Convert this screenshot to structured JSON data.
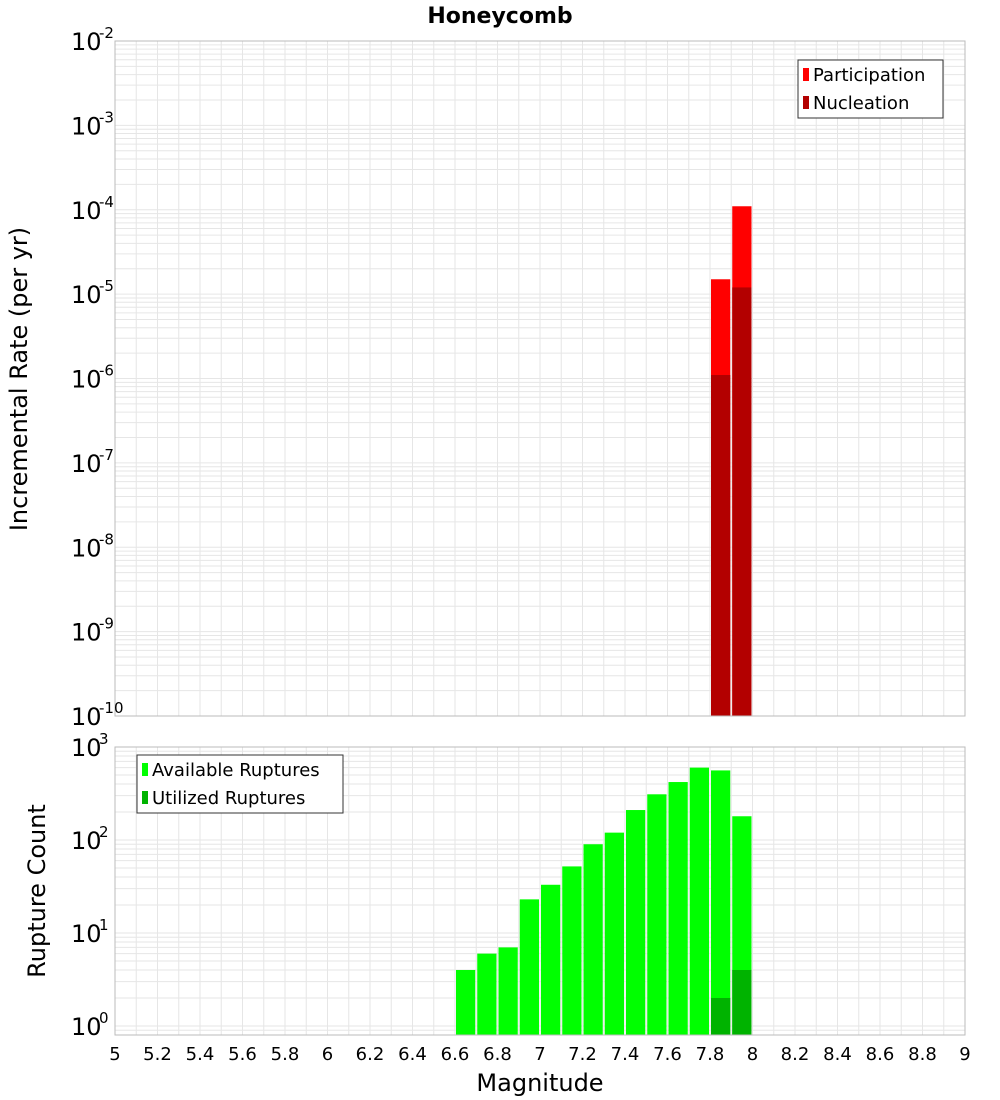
{
  "title": "Honeycomb",
  "colors": {
    "participation": "#ff0000",
    "nucleation": "#b30000",
    "available": "#00ff00",
    "utilized": "#00b300",
    "grid": "#e6e6e6",
    "frame": "#bbbbbb"
  },
  "chart_data": [
    {
      "type": "bar",
      "ylabel": "Incremental Rate (per yr)",
      "yscale": "log",
      "ylim": [
        1e-10,
        0.01
      ],
      "xlim": [
        5,
        9
      ],
      "y_ticks": [
        {
          "base": "10",
          "exp": "-10",
          "value": 1e-10
        },
        {
          "base": "10",
          "exp": "-9",
          "value": 1e-09
        },
        {
          "base": "10",
          "exp": "-8",
          "value": 1e-08
        },
        {
          "base": "10",
          "exp": "-7",
          "value": 1e-07
        },
        {
          "base": "10",
          "exp": "-6",
          "value": 1e-06
        },
        {
          "base": "10",
          "exp": "-5",
          "value": 1e-05
        },
        {
          "base": "10",
          "exp": "-4",
          "value": 0.0001
        },
        {
          "base": "10",
          "exp": "-3",
          "value": 0.001
        },
        {
          "base": "10",
          "exp": "-2",
          "value": 0.01
        }
      ],
      "legend": {
        "position": "top-right",
        "entries": [
          "Participation",
          "Nucleation"
        ]
      },
      "grid": true,
      "series": [
        {
          "name": "Participation",
          "x": [
            7.85,
            7.95
          ],
          "values": [
            1.5e-05,
            0.00011
          ]
        },
        {
          "name": "Nucleation",
          "x": [
            7.85,
            7.95
          ],
          "values": [
            1.1e-06,
            1.2e-05
          ]
        }
      ]
    },
    {
      "type": "bar",
      "ylabel": "Rupture Count",
      "xlabel": "Magnitude",
      "yscale": "log",
      "ylim": [
        0.8,
        1000
      ],
      "xlim": [
        5,
        9
      ],
      "y_ticks": [
        {
          "base": "10",
          "exp": "0",
          "value": 1
        },
        {
          "base": "10",
          "exp": "1",
          "value": 10
        },
        {
          "base": "10",
          "exp": "2",
          "value": 100
        },
        {
          "base": "10",
          "exp": "3",
          "value": 1000
        }
      ],
      "x_ticks": [
        "5",
        "5.2",
        "5.4",
        "5.6",
        "5.8",
        "6",
        "6.2",
        "6.4",
        "6.6",
        "6.8",
        "7",
        "7.2",
        "7.4",
        "7.6",
        "7.8",
        "8",
        "8.2",
        "8.4",
        "8.6",
        "8.8",
        "9"
      ],
      "legend": {
        "position": "top-left",
        "entries": [
          "Available Ruptures",
          "Utilized Ruptures"
        ]
      },
      "grid": true,
      "series": [
        {
          "name": "Available Ruptures",
          "x": [
            6.65,
            6.75,
            6.85,
            6.95,
            7.05,
            7.15,
            7.25,
            7.35,
            7.45,
            7.55,
            7.65,
            7.75,
            7.85,
            7.95
          ],
          "values": [
            4,
            6,
            7,
            23,
            33,
            52,
            90,
            120,
            210,
            310,
            420,
            600,
            560,
            180
          ]
        },
        {
          "name": "Utilized Ruptures",
          "x": [
            7.85,
            7.95
          ],
          "values": [
            2,
            4
          ]
        }
      ]
    }
  ]
}
